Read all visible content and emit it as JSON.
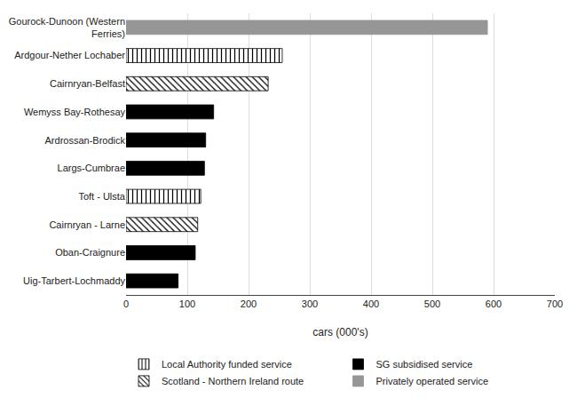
{
  "chart_data": {
    "type": "bar",
    "orientation": "horizontal",
    "xlabel": "cars (000's)",
    "categories": [
      "Gourock-Dunoon (Western\nFerries)",
      "Ardgour-Nether Lochaber",
      "Cairnryan-Belfast",
      "Wemyss Bay-Rothesay",
      "Ardrossan-Brodick",
      "Largs-Cumbrae",
      "Toft - Ulsta",
      "Cairnryan - Larne",
      "Oban-Craignure",
      "Uig-Tarbert-Lochmaddy"
    ],
    "series": [
      {
        "name": "Local Authority funded service",
        "color": "#ffffff",
        "marker": "vertical",
        "values": [
          null,
          255,
          null,
          null,
          null,
          null,
          122,
          null,
          null,
          null
        ]
      },
      {
        "name": "SG subsidised service",
        "color": "#000000",
        "values": [
          null,
          null,
          null,
          143,
          130,
          128,
          null,
          null,
          113,
          85
        ]
      },
      {
        "name": "Scotland - Northern Ireland route",
        "color": "#ffffff",
        "marker": "diagonal",
        "values": [
          null,
          null,
          232,
          null,
          null,
          null,
          null,
          117,
          null,
          null
        ]
      },
      {
        "name": "Privately operated service",
        "color": "#969696",
        "values": [
          590,
          null,
          null,
          null,
          null,
          null,
          null,
          null,
          null,
          null
        ]
      }
    ],
    "xlim": [
      0,
      700
    ],
    "xticks": [
      0,
      100,
      200,
      300,
      400,
      500,
      600,
      700
    ],
    "grid": true,
    "legend": "bottom"
  }
}
